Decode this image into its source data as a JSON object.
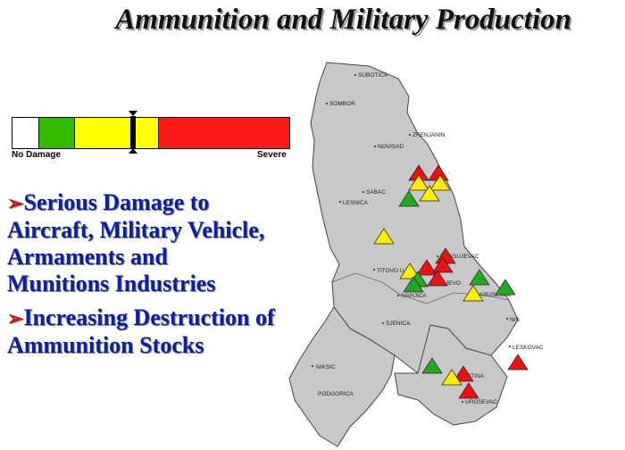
{
  "title": "Ammunition and Military Production",
  "damage_scale": {
    "low_label": "No Damage",
    "high_label": "Severe",
    "colors": [
      "#ffffff",
      "#33bb00",
      "#ffff00",
      "#ff1a1a"
    ],
    "indicator_level": 0.44
  },
  "bullets": [
    "Serious Damage to Aircraft, Military Vehicle, Armaments and Munitions Industries",
    "Increasing Destruction of Ammunition Stocks"
  ],
  "map": {
    "cities": [
      "SUBOTICA",
      "SOMBOR",
      "ZRENJANIN",
      "NOVISAD",
      "SABAC",
      "LESNICA",
      "KRAGUJEVAC",
      "TITOVO U",
      "IVANJICA",
      "KRUSEVAC",
      "NIS",
      "SJENICA",
      "LESKOVAC",
      "NIKSIC",
      "PODGORICA",
      "PRISTINA",
      "UROSEVAC",
      "JEVO"
    ],
    "marker_colors": {
      "red": "#ee1111",
      "yellow": "#ffee00",
      "green": "#22aa22"
    }
  }
}
